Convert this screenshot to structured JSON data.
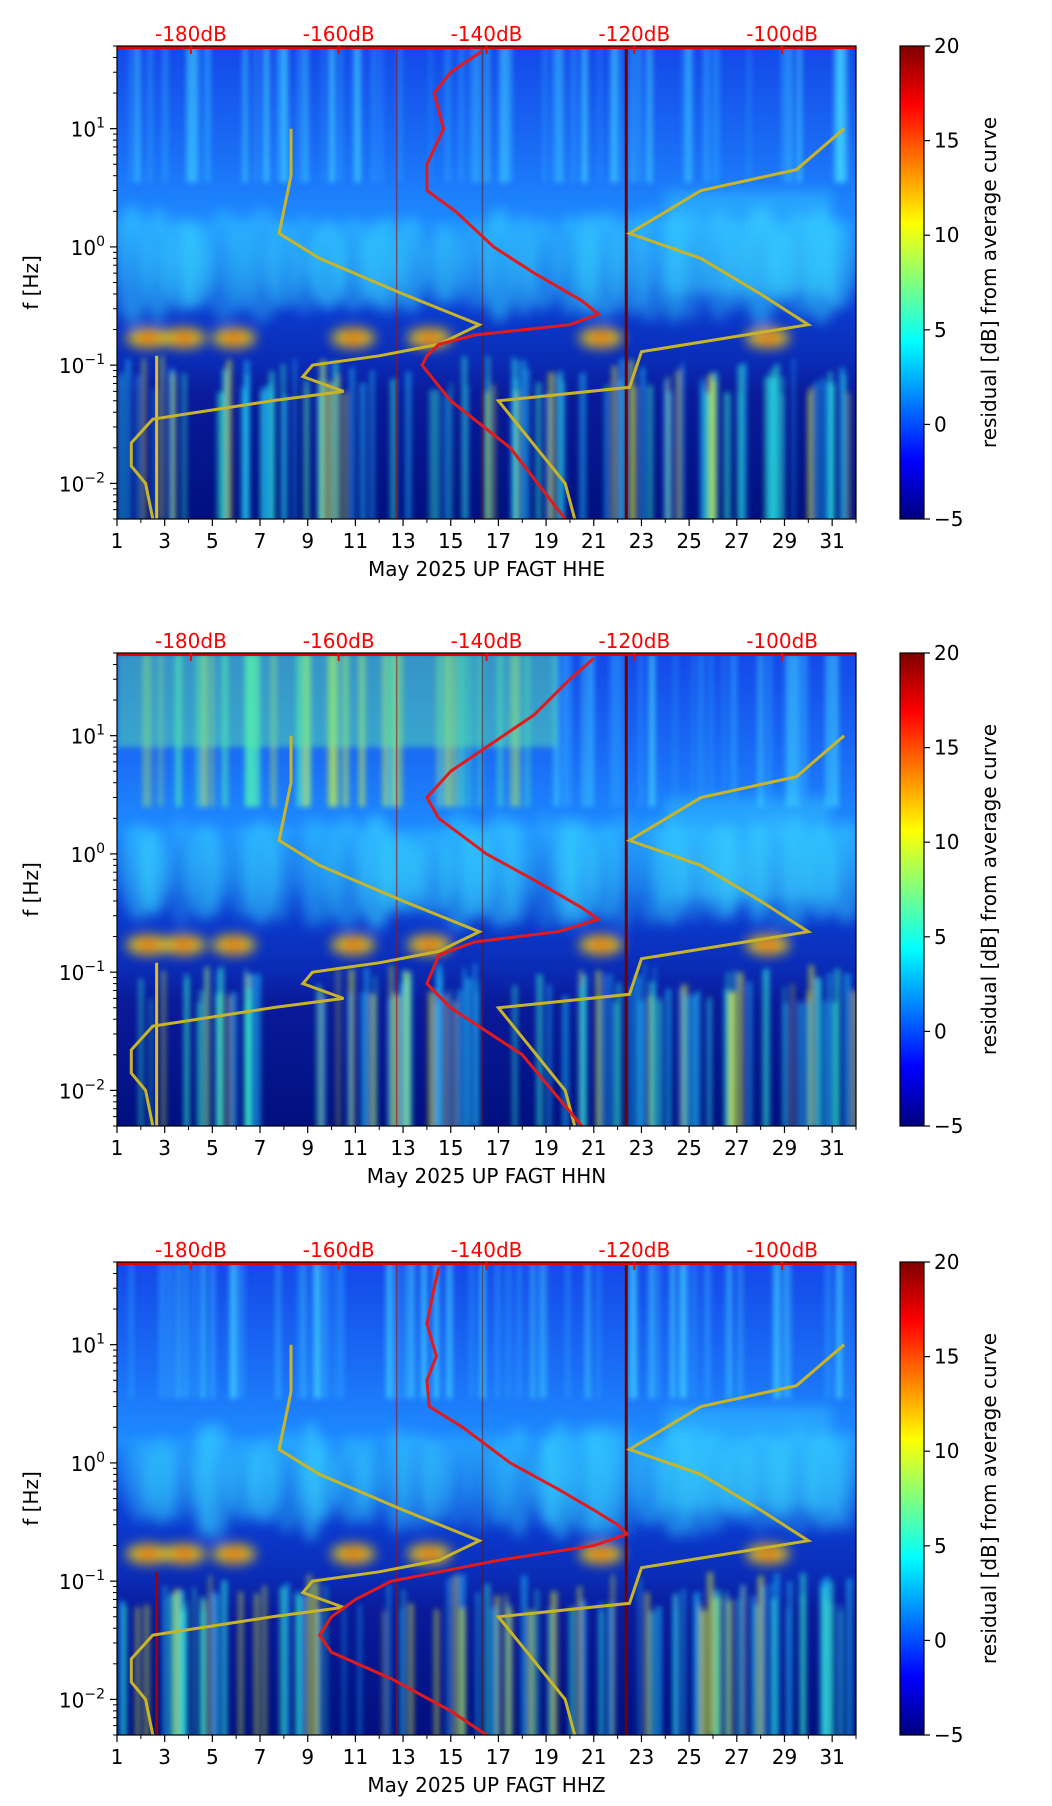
{
  "chart_data": [
    {
      "type": "heatmap",
      "channel": "HHE",
      "xlabel": "May 2025 UP FAGT  HHE",
      "ylabel": "f [Hz]",
      "colorbar_label": "residual [dB] from average curve",
      "xticks": [
        "1",
        "3",
        "5",
        "7",
        "9",
        "11",
        "13",
        "15",
        "17",
        "19",
        "21",
        "23",
        "25",
        "27",
        "29",
        "31"
      ],
      "yticks": [
        "10^{-2}",
        "10^{-1}",
        "10^{0}",
        "10^{1}"
      ],
      "cticks": [
        "−5",
        "0",
        "5",
        "10",
        "15",
        "20"
      ],
      "db_ticks": [
        "-180dB",
        "-160dB",
        "-140dB",
        "-120dB",
        "-100dB"
      ],
      "xlim": [
        1,
        32
      ],
      "ylim": [
        0.005,
        50
      ],
      "clim": [
        -5,
        20
      ],
      "yscale": "log",
      "colormap": "jet",
      "noise_model_color": "#c8b428",
      "psd_curve_color": "#e31a1c",
      "noise_models": {
        "low": [
          [
            10,
            8.3
          ],
          [
            4,
            8.3
          ],
          [
            1.3,
            7.8
          ],
          [
            0.8,
            9.5
          ],
          [
            0.4,
            13
          ],
          [
            0.22,
            16.2
          ],
          [
            0.15,
            14.5
          ],
          [
            0.12,
            12
          ],
          [
            0.1,
            9.2
          ],
          [
            0.08,
            8.8
          ],
          [
            0.06,
            10.5
          ],
          [
            0.05,
            7.5
          ],
          [
            0.035,
            2.5
          ],
          [
            0.022,
            1.6
          ],
          [
            0.014,
            1.6
          ],
          [
            0.01,
            2.2
          ],
          [
            0.005,
            2.5
          ]
        ],
        "high": [
          [
            10,
            31.5
          ],
          [
            4.5,
            29.5
          ],
          [
            3,
            25.5
          ],
          [
            1.3,
            22.5
          ],
          [
            0.8,
            25.5
          ],
          [
            0.4,
            28
          ],
          [
            0.22,
            30
          ],
          [
            0.13,
            23
          ],
          [
            0.065,
            22.5
          ],
          [
            0.05,
            17
          ],
          [
            0.01,
            19.8
          ],
          [
            0.005,
            20.2
          ]
        ]
      },
      "psd_curve": [
        [
          45,
          16.3
        ],
        [
          30,
          15
        ],
        [
          20,
          14.3
        ],
        [
          10,
          14.7
        ],
        [
          5,
          14
        ],
        [
          3,
          14
        ],
        [
          2,
          15.2
        ],
        [
          1,
          16.8
        ],
        [
          0.6,
          18.5
        ],
        [
          0.35,
          20.5
        ],
        [
          0.27,
          21.2
        ],
        [
          0.22,
          20
        ],
        [
          0.18,
          16
        ],
        [
          0.15,
          14.5
        ],
        [
          0.12,
          14
        ],
        [
          0.1,
          13.8
        ],
        [
          0.05,
          15
        ],
        [
          0.02,
          17.5
        ],
        [
          0.005,
          19.8
        ]
      ]
    },
    {
      "type": "heatmap",
      "channel": "HHN",
      "xlabel": "May 2025 UP FAGT  HHN",
      "ylabel": "f [Hz]",
      "colorbar_label": "residual [dB] from average curve",
      "xticks": [
        "1",
        "3",
        "5",
        "7",
        "9",
        "11",
        "13",
        "15",
        "17",
        "19",
        "21",
        "23",
        "25",
        "27",
        "29",
        "31"
      ],
      "yticks": [
        "10^{-2}",
        "10^{-1}",
        "10^{0}",
        "10^{1}"
      ],
      "cticks": [
        "−5",
        "0",
        "5",
        "10",
        "15",
        "20"
      ],
      "db_ticks": [
        "-180dB",
        "-160dB",
        "-140dB",
        "-120dB",
        "-100dB"
      ],
      "xlim": [
        1,
        32
      ],
      "ylim": [
        0.005,
        50
      ],
      "clim": [
        -5,
        20
      ],
      "yscale": "log",
      "colormap": "jet",
      "noise_model_color": "#c8b428",
      "psd_curve_color": "#e31a1c",
      "noise_models": {
        "low": [
          [
            10,
            8.3
          ],
          [
            4,
            8.3
          ],
          [
            1.3,
            7.8
          ],
          [
            0.8,
            9.5
          ],
          [
            0.4,
            13
          ],
          [
            0.22,
            16.2
          ],
          [
            0.15,
            14.5
          ],
          [
            0.12,
            12
          ],
          [
            0.1,
            9.2
          ],
          [
            0.08,
            8.8
          ],
          [
            0.06,
            10.5
          ],
          [
            0.05,
            7.5
          ],
          [
            0.035,
            2.5
          ],
          [
            0.022,
            1.6
          ],
          [
            0.014,
            1.6
          ],
          [
            0.01,
            2.2
          ],
          [
            0.005,
            2.5
          ]
        ],
        "high": [
          [
            10,
            31.5
          ],
          [
            4.5,
            29.5
          ],
          [
            3,
            25.5
          ],
          [
            1.3,
            22.5
          ],
          [
            0.8,
            25.5
          ],
          [
            0.4,
            28
          ],
          [
            0.22,
            30
          ],
          [
            0.13,
            23
          ],
          [
            0.065,
            22.5
          ],
          [
            0.05,
            17
          ],
          [
            0.01,
            19.8
          ],
          [
            0.005,
            20.2
          ]
        ]
      },
      "psd_curve": [
        [
          45,
          21
        ],
        [
          30,
          20
        ],
        [
          15,
          18.5
        ],
        [
          8,
          16.5
        ],
        [
          5,
          15
        ],
        [
          3,
          14
        ],
        [
          2,
          14.5
        ],
        [
          1,
          16.5
        ],
        [
          0.6,
          18.5
        ],
        [
          0.35,
          20.5
        ],
        [
          0.28,
          21.2
        ],
        [
          0.22,
          19.5
        ],
        [
          0.18,
          16
        ],
        [
          0.14,
          14.5
        ],
        [
          0.1,
          14.2
        ],
        [
          0.08,
          14
        ],
        [
          0.05,
          15
        ],
        [
          0.02,
          18
        ],
        [
          0.005,
          20.5
        ]
      ]
    },
    {
      "type": "heatmap",
      "channel": "HHZ",
      "xlabel": "May 2025 UP FAGT  HHZ",
      "ylabel": "f [Hz]",
      "colorbar_label": "residual [dB] from average curve",
      "xticks": [
        "1",
        "3",
        "5",
        "7",
        "9",
        "11",
        "13",
        "15",
        "17",
        "19",
        "21",
        "23",
        "25",
        "27",
        "29",
        "31"
      ],
      "yticks": [
        "10^{-2}",
        "10^{-1}",
        "10^{0}",
        "10^{1}"
      ],
      "cticks": [
        "−5",
        "0",
        "5",
        "10",
        "15",
        "20"
      ],
      "db_ticks": [
        "-180dB",
        "-160dB",
        "-140dB",
        "-120dB",
        "-100dB"
      ],
      "xlim": [
        1,
        32
      ],
      "ylim": [
        0.005,
        50
      ],
      "clim": [
        -5,
        20
      ],
      "yscale": "log",
      "colormap": "jet",
      "noise_model_color": "#c8b428",
      "psd_curve_color": "#e31a1c",
      "noise_models": {
        "low": [
          [
            10,
            8.3
          ],
          [
            4,
            8.3
          ],
          [
            1.3,
            7.8
          ],
          [
            0.8,
            9.5
          ],
          [
            0.4,
            13
          ],
          [
            0.22,
            16.2
          ],
          [
            0.15,
            14.5
          ],
          [
            0.12,
            12
          ],
          [
            0.1,
            9.2
          ],
          [
            0.08,
            8.8
          ],
          [
            0.06,
            10.5
          ],
          [
            0.05,
            7.5
          ],
          [
            0.035,
            2.5
          ],
          [
            0.022,
            1.6
          ],
          [
            0.014,
            1.6
          ],
          [
            0.01,
            2.2
          ],
          [
            0.005,
            2.5
          ]
        ],
        "high": [
          [
            10,
            31.5
          ],
          [
            4.5,
            29.5
          ],
          [
            3,
            25.5
          ],
          [
            1.3,
            22.5
          ],
          [
            0.8,
            25.5
          ],
          [
            0.4,
            28
          ],
          [
            0.22,
            30
          ],
          [
            0.13,
            23
          ],
          [
            0.065,
            22.5
          ],
          [
            0.05,
            17
          ],
          [
            0.01,
            19.8
          ],
          [
            0.005,
            20.2
          ]
        ]
      },
      "psd_curve": [
        [
          45,
          14.5
        ],
        [
          30,
          14.3
        ],
        [
          15,
          14
        ],
        [
          8,
          14.4
        ],
        [
          5,
          14
        ],
        [
          3,
          14.1
        ],
        [
          2,
          15.5
        ],
        [
          1,
          17.5
        ],
        [
          0.6,
          19.5
        ],
        [
          0.4,
          21
        ],
        [
          0.3,
          22
        ],
        [
          0.25,
          22.4
        ],
        [
          0.2,
          21
        ],
        [
          0.15,
          17
        ],
        [
          0.1,
          12.5
        ],
        [
          0.07,
          11
        ],
        [
          0.05,
          10
        ],
        [
          0.035,
          9.5
        ],
        [
          0.025,
          10
        ],
        [
          0.015,
          12.5
        ],
        [
          0.008,
          15
        ],
        [
          0.005,
          16.5
        ]
      ]
    }
  ]
}
